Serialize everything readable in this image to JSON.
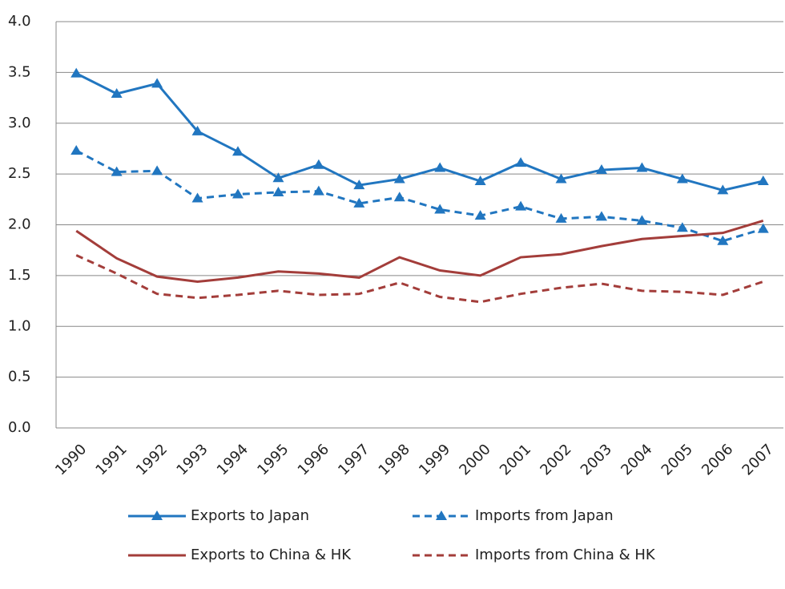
{
  "chart_data": {
    "type": "line",
    "categories": [
      "1990",
      "1991",
      "1992",
      "1993",
      "1994",
      "1995",
      "1996",
      "1997",
      "1998",
      "1999",
      "2000",
      "2001",
      "2002",
      "2003",
      "2004",
      "2005",
      "2006",
      "2007"
    ],
    "series": [
      {
        "name": "Exports to Japan",
        "color": "#2176c0",
        "dashed": false,
        "marker": "triangle",
        "values": [
          3.49,
          3.29,
          3.39,
          2.92,
          2.72,
          2.46,
          2.59,
          2.39,
          2.45,
          2.56,
          2.43,
          2.61,
          2.45,
          2.54,
          2.56,
          2.45,
          2.34,
          2.43
        ]
      },
      {
        "name": "Imports from Japan",
        "color": "#2176c0",
        "dashed": true,
        "marker": "triangle",
        "values": [
          2.73,
          2.52,
          2.53,
          2.26,
          2.3,
          2.32,
          2.33,
          2.21,
          2.27,
          2.15,
          2.09,
          2.18,
          2.06,
          2.08,
          2.04,
          1.97,
          1.84,
          1.96
        ]
      },
      {
        "name": "Exports to China & HK",
        "color": "#a33d3a",
        "dashed": false,
        "marker": "none",
        "values": [
          1.94,
          1.67,
          1.49,
          1.44,
          1.48,
          1.54,
          1.52,
          1.48,
          1.68,
          1.55,
          1.5,
          1.68,
          1.71,
          1.79,
          1.86,
          1.89,
          1.92,
          2.04
        ]
      },
      {
        "name": "Imports from China & HK",
        "color": "#a33d3a",
        "dashed": true,
        "marker": "none",
        "values": [
          1.7,
          1.52,
          1.32,
          1.28,
          1.31,
          1.35,
          1.31,
          1.32,
          1.43,
          1.29,
          1.24,
          1.32,
          1.38,
          1.42,
          1.35,
          1.34,
          1.31,
          1.44
        ]
      }
    ],
    "ylim": [
      0,
      4
    ],
    "yticks": [
      {
        "value": 0,
        "label": "0.0"
      },
      {
        "value": 0.5,
        "label": "0.5"
      },
      {
        "value": 1,
        "label": "1.0"
      },
      {
        "value": 1.5,
        "label": "1.5"
      },
      {
        "value": 2,
        "label": "2.0"
      },
      {
        "value": 2.5,
        "label": "2.5"
      },
      {
        "value": 3,
        "label": "3.0"
      },
      {
        "value": 3.5,
        "label": "3.5"
      },
      {
        "value": 4,
        "label": "4.0"
      }
    ],
    "grid": true,
    "legend": "bottom"
  }
}
